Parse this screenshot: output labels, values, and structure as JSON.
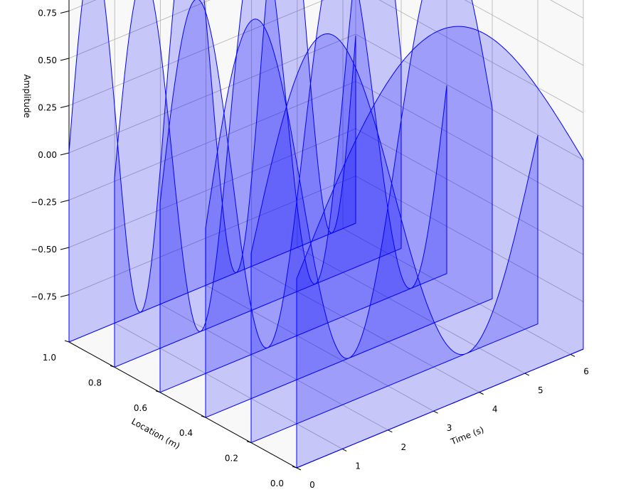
{
  "chart_data": {
    "type": "3d-polygon-waterfall",
    "xlabel": "Time (s)",
    "ylabel": "Location (m)",
    "zlabel": "Amplitude",
    "xlim": [
      0,
      6.28
    ],
    "ylim": [
      0.0,
      1.0
    ],
    "zlim": [
      -1,
      1
    ],
    "x_ticks": [
      "0",
      "1",
      "2",
      "3",
      "4",
      "5",
      "6"
    ],
    "y_ticks": [
      "0.0",
      "0.2",
      "0.4",
      "0.6",
      "0.8",
      "1.0"
    ],
    "z_ticks": [
      "−0.75",
      "−0.50",
      "−0.25",
      "0.00",
      "0.25",
      "0.50",
      "0.75"
    ],
    "grid": true,
    "colors": {
      "fill": "#0000ff",
      "fill_opacity": 0.2,
      "line": "#0000ff"
    },
    "series": [
      {
        "location": 0.0,
        "frequency": 0.5,
        "function": "sin(frequency * time)"
      },
      {
        "location": 0.2,
        "frequency": 1.0,
        "function": "sin(frequency * time)"
      },
      {
        "location": 0.4,
        "frequency": 1.5,
        "function": "sin(frequency * time)"
      },
      {
        "location": 0.6,
        "frequency": 2.0,
        "function": "sin(frequency * time)"
      },
      {
        "location": 0.8,
        "frequency": 2.5,
        "function": "sin(frequency * time)"
      },
      {
        "location": 1.0,
        "frequency": 3.0,
        "function": "sin(frequency * time)"
      }
    ]
  }
}
